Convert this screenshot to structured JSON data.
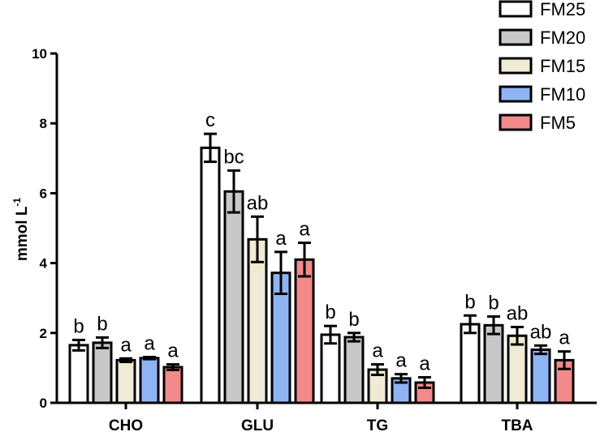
{
  "chart_data": {
    "type": "bar",
    "categories": [
      "CHO",
      "GLU",
      "TG",
      "TBA"
    ],
    "ylabel": "mmol L",
    "ylabel_superscript": "-1",
    "ylim": [
      0,
      10
    ],
    "yticks": [
      "0",
      "2",
      "4",
      "6",
      "8",
      "10"
    ],
    "legend_position": "top-right",
    "grid": false,
    "series": [
      {
        "name": "FM25",
        "color": "#ffffff",
        "values": [
          1.65,
          7.3,
          1.95,
          2.25
        ],
        "errors": [
          0.15,
          0.4,
          0.25,
          0.25
        ],
        "labels": [
          "b",
          "c",
          "b",
          "b"
        ]
      },
      {
        "name": "FM20",
        "color": "#c8c8c8",
        "values": [
          1.72,
          6.05,
          1.88,
          2.22
        ],
        "errors": [
          0.15,
          0.6,
          0.12,
          0.25
        ],
        "labels": [
          "b",
          "bc",
          "b",
          "b"
        ]
      },
      {
        "name": "FM15",
        "color": "#efebd4",
        "values": [
          1.22,
          4.68,
          0.95,
          1.92
        ],
        "errors": [
          0.05,
          0.65,
          0.15,
          0.25
        ],
        "labels": [
          "a",
          "ab",
          "a",
          "ab"
        ]
      },
      {
        "name": "FM10",
        "color": "#8eb4f4",
        "values": [
          1.28,
          3.72,
          0.7,
          1.52
        ],
        "errors": [
          0.03,
          0.6,
          0.12,
          0.12
        ],
        "labels": [
          "a",
          "a",
          "a",
          "ab"
        ]
      },
      {
        "name": "FM5",
        "color": "#f28a8a",
        "values": [
          1.02,
          4.1,
          0.58,
          1.22
        ],
        "errors": [
          0.08,
          0.48,
          0.15,
          0.25
        ],
        "labels": [
          "a",
          "a",
          "a",
          "a"
        ]
      }
    ]
  }
}
